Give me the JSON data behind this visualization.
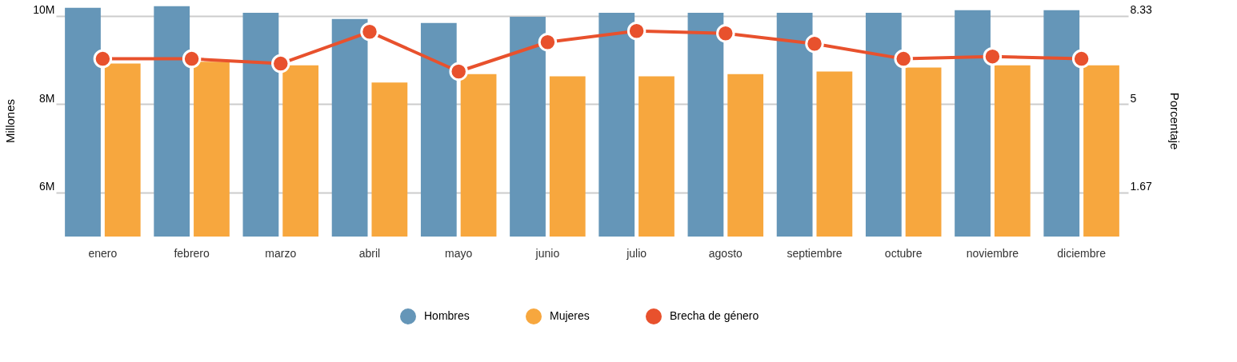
{
  "chart_data": {
    "type": "bar",
    "categories": [
      "enero",
      "febrero",
      "marzo",
      "abril",
      "mayo",
      "junio",
      "julio",
      "agosto",
      "septiembre",
      "octubre",
      "noviembre",
      "diciembre"
    ],
    "ylabel": "Millones",
    "y2label": "Porcentaje",
    "ylim": [
      5,
      10.25
    ],
    "yticks": [
      {
        "value": 6,
        "label": "6M"
      },
      {
        "value": 8,
        "label": "8M"
      },
      {
        "value": 10,
        "label": "10M"
      }
    ],
    "y2lim": [
      0,
      8.75
    ],
    "y2ticks": [
      1.67,
      5,
      8.33
    ],
    "grid": "y",
    "legend": "bottom",
    "marker": "circle",
    "series": [
      {
        "name": "Hombres",
        "color": "#6596b8",
        "values": [
          10.18,
          10.22,
          10.07,
          9.93,
          9.84,
          9.98,
          10.07,
          10.07,
          10.07,
          10.07,
          10.13,
          10.13
        ]
      },
      {
        "name": "Mujeres",
        "color": "#f7a73e",
        "values": [
          8.92,
          8.96,
          8.88,
          8.49,
          8.68,
          8.63,
          8.63,
          8.68,
          8.74,
          8.83,
          8.88,
          8.88
        ]
      },
      {
        "name": "Brecha de género",
        "color": "#e8512d",
        "type": "line",
        "axis": "y2",
        "values": [
          6.71,
          6.71,
          6.53,
          7.73,
          6.23,
          7.34,
          7.76,
          7.67,
          7.28,
          6.71,
          6.8,
          6.71
        ]
      }
    ]
  }
}
